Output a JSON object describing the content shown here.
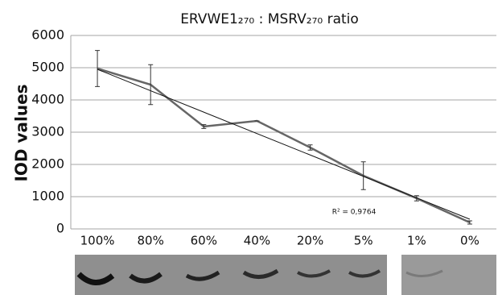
{
  "chart_data": {
    "type": "line",
    "title": "ERVWE1₂₇₀ : MSRV₂₇₀ ratio",
    "y_label": "IOD values",
    "categories": [
      "100%",
      "80%",
      "60%",
      "40%",
      "20%",
      "5%",
      "1%",
      "0%"
    ],
    "series": [
      {
        "color": "#666666",
        "values": [
          4975,
          4475,
          3175,
          3350,
          2525,
          1650,
          950,
          200
        ],
        "errors": [
          560,
          620,
          60,
          0,
          80,
          430,
          80,
          50
        ]
      }
    ],
    "trendline": {
      "color": "#111111",
      "values": [
        4950,
        300
      ],
      "annotation": "R² = 0,9764"
    },
    "ylim": [
      0,
      6000
    ],
    "yticks": [
      0,
      1000,
      2000,
      3000,
      4000,
      5000,
      6000
    ],
    "grid": true
  }
}
